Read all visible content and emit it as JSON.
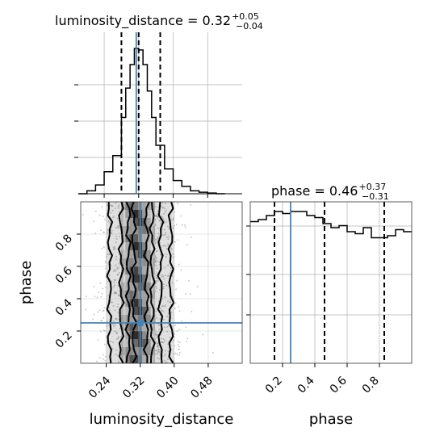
{
  "chart_data": {
    "type": "corner",
    "parameters": [
      "luminosity_distance",
      "phase"
    ],
    "truth": {
      "luminosity_distance": 0.32,
      "phase": 0.25
    },
    "panels": [
      {
        "id": "luminosity_distance-hist",
        "type": "step-histogram",
        "parameter": "luminosity_distance",
        "title": "luminosity_distance = 0.32",
        "title_sup": "+0.05",
        "title_sub": "−0.04",
        "xlim": [
          0.18,
          0.56
        ],
        "bin_edges": [
          0.18,
          0.2,
          0.22,
          0.24,
          0.26,
          0.28,
          0.29,
          0.3,
          0.31,
          0.32,
          0.33,
          0.34,
          0.35,
          0.36,
          0.38,
          0.4,
          0.42,
          0.44,
          0.46,
          0.48,
          0.5,
          0.52
        ],
        "counts": [
          0,
          2,
          6,
          15,
          26,
          52,
          72,
          88,
          99,
          98,
          88,
          70,
          52,
          33,
          17,
          9,
          5,
          2,
          1,
          0.5,
          0
        ],
        "quantile_lines": [
          0.28,
          0.32,
          0.37
        ]
      },
      {
        "id": "phase-hist",
        "type": "step-histogram",
        "parameter": "phase",
        "title": "phase = 0.46",
        "title_sup": "+0.37",
        "title_sub": "−0.31",
        "xlim": [
          0.0,
          1.0
        ],
        "bin_edges": [
          0.0,
          0.05,
          0.1,
          0.15,
          0.2,
          0.25,
          0.3,
          0.35,
          0.4,
          0.45,
          0.5,
          0.55,
          0.6,
          0.65,
          0.7,
          0.75,
          0.8,
          0.85,
          0.9,
          0.95,
          1.0
        ],
        "counts": [
          91,
          92,
          94,
          96,
          95,
          96,
          96,
          94,
          93,
          90,
          88,
          89,
          86,
          85,
          88,
          83,
          83,
          84,
          87,
          86
        ],
        "quantile_lines": [
          0.15,
          0.46,
          0.83
        ]
      },
      {
        "id": "joint",
        "type": "2d-density",
        "x": "luminosity_distance",
        "y": "phase",
        "xlim": [
          0.18,
          0.56
        ],
        "ylim": [
          0.0,
          1.0
        ]
      }
    ],
    "axes": {
      "luminosity_distance": {
        "label": "luminosity_distance",
        "ticks": [
          0.24,
          0.32,
          0.4,
          0.48
        ],
        "tick_labels": [
          "0.24",
          "0.32",
          "0.40",
          "0.48"
        ]
      },
      "phase_x": {
        "label": "phase",
        "ticks": [
          0.2,
          0.4,
          0.6,
          0.8
        ],
        "tick_labels": [
          "0.2",
          "0.4",
          "0.6",
          "0.8"
        ]
      },
      "phase_y": {
        "label": "phase",
        "ticks": [
          0.2,
          0.4,
          0.6,
          0.8
        ],
        "tick_labels": [
          "0.2",
          "0.4",
          "0.6",
          "0.8"
        ]
      }
    },
    "grid": true,
    "colors": {
      "truth": "#4682b4",
      "histogram": "#000000",
      "quantile": "#000000",
      "density": "#000000",
      "grid": "#b0b0b0"
    }
  }
}
